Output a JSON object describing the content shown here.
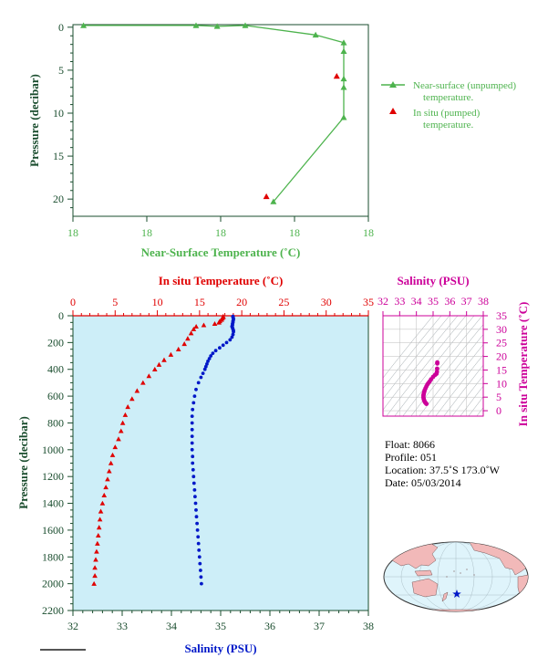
{
  "colors": {
    "near_surface": "#4db34d",
    "in_situ_temp": "#e00000",
    "salinity": "#0018c8",
    "ts_salinity": "#cc0099",
    "axis_dark": "#1a4d2e",
    "plot_bg": "#cdeef8",
    "land": "#f2b9b9",
    "ocean": "#dff4fb"
  },
  "chart_data": [
    {
      "id": "near_surface",
      "type": "line",
      "xlabel": "Near-Surface Temperature (˚C)",
      "ylabel": "Pressure (decibar)",
      "xtick_labels": [
        "18",
        "18",
        "18",
        "18",
        "18"
      ],
      "ylim": [
        0,
        22
      ],
      "yticks": [
        "0",
        "5",
        "10",
        "15",
        "20"
      ],
      "grid": false,
      "legend_position": "right",
      "series": [
        {
          "name": "Near-surface (unpumped) temperature.",
          "marker": "triangle-line",
          "x": [
            17.57,
            17.73,
            17.76,
            17.8,
            17.9,
            17.94,
            17.94,
            17.94,
            17.94,
            17.94,
            17.84
          ],
          "y": [
            -0.2,
            -0.2,
            -0.1,
            -0.2,
            0.9,
            1.8,
            2.8,
            6.0,
            7.0,
            10.5,
            20.3
          ]
        },
        {
          "name": "In situ (pumped) temperature.",
          "marker": "triangle",
          "x": [
            17.93,
            17.83
          ],
          "y": [
            5.7,
            19.7
          ]
        }
      ]
    },
    {
      "id": "main_profile",
      "type": "scatter",
      "top_xlabel": "In situ Temperature (˚C)",
      "bottom_xlabel": "Salinity (PSU)",
      "ylabel": "Pressure (decibar)",
      "top_xlim": [
        0,
        35
      ],
      "top_xticks": [
        0,
        5,
        10,
        15,
        20,
        25,
        30,
        35
      ],
      "bottom_xlim": [
        32,
        38
      ],
      "bottom_xticks": [
        32,
        33,
        34,
        35,
        36,
        37,
        38
      ],
      "ylim": [
        0,
        2200
      ],
      "yticks": [
        0,
        200,
        400,
        600,
        800,
        1000,
        1200,
        1400,
        1600,
        1800,
        2000,
        2200
      ],
      "grid": false,
      "series": [
        {
          "name": "In situ Temperature (˚C)",
          "axis": "top",
          "marker": "triangle",
          "points": [
            [
              17.8,
              5
            ],
            [
              17.8,
              10
            ],
            [
              17.7,
              20
            ],
            [
              17.6,
              30
            ],
            [
              17.4,
              40
            ],
            [
              17.3,
              50
            ],
            [
              16.8,
              60
            ],
            [
              15.5,
              70
            ],
            [
              14.6,
              80
            ],
            [
              14.3,
              100
            ],
            [
              14.0,
              130
            ],
            [
              13.6,
              170
            ],
            [
              13.2,
              210
            ],
            [
              12.5,
              250
            ],
            [
              11.6,
              290
            ],
            [
              10.8,
              330
            ],
            [
              10.2,
              365
            ],
            [
              9.7,
              400
            ],
            [
              9.0,
              450
            ],
            [
              8.3,
              500
            ],
            [
              7.6,
              560
            ],
            [
              7.0,
              620
            ],
            [
              6.5,
              680
            ],
            [
              6.2,
              740
            ],
            [
              5.9,
              800
            ],
            [
              5.7,
              860
            ],
            [
              5.4,
              920
            ],
            [
              5.0,
              980
            ],
            [
              4.7,
              1040
            ],
            [
              4.5,
              1100
            ],
            [
              4.3,
              1160
            ],
            [
              4.1,
              1220
            ],
            [
              3.9,
              1280
            ],
            [
              3.7,
              1340
            ],
            [
              3.5,
              1400
            ],
            [
              3.3,
              1460
            ],
            [
              3.2,
              1520
            ],
            [
              3.1,
              1580
            ],
            [
              3.0,
              1640
            ],
            [
              2.9,
              1700
            ],
            [
              2.8,
              1760
            ],
            [
              2.7,
              1820
            ],
            [
              2.6,
              1880
            ],
            [
              2.6,
              1940
            ],
            [
              2.5,
              2000
            ]
          ]
        },
        {
          "name": "Salinity (PSU)",
          "axis": "bottom",
          "marker": "dot",
          "points": [
            [
              35.25,
              5
            ],
            [
              35.25,
              10
            ],
            [
              35.26,
              20
            ],
            [
              35.26,
              30
            ],
            [
              35.25,
              40
            ],
            [
              35.25,
              50
            ],
            [
              35.24,
              60
            ],
            [
              35.24,
              70
            ],
            [
              35.23,
              80
            ],
            [
              35.24,
              90
            ],
            [
              35.25,
              100
            ],
            [
              35.26,
              110
            ],
            [
              35.26,
              120
            ],
            [
              35.25,
              140
            ],
            [
              35.23,
              160
            ],
            [
              35.19,
              180
            ],
            [
              35.12,
              200
            ],
            [
              35.05,
              220
            ],
            [
              34.98,
              240
            ],
            [
              34.9,
              260
            ],
            [
              34.84,
              280
            ],
            [
              34.8,
              300
            ],
            [
              34.77,
              320
            ],
            [
              34.74,
              340
            ],
            [
              34.72,
              360
            ],
            [
              34.7,
              380
            ],
            [
              34.68,
              400
            ],
            [
              34.64,
              430
            ],
            [
              34.6,
              460
            ],
            [
              34.55,
              500
            ],
            [
              34.5,
              550
            ],
            [
              34.47,
              600
            ],
            [
              34.45,
              650
            ],
            [
              34.43,
              700
            ],
            [
              34.42,
              750
            ],
            [
              34.42,
              800
            ],
            [
              34.42,
              850
            ],
            [
              34.42,
              900
            ],
            [
              34.42,
              950
            ],
            [
              34.42,
              1000
            ],
            [
              34.43,
              1050
            ],
            [
              34.43,
              1100
            ],
            [
              34.44,
              1150
            ],
            [
              34.45,
              1200
            ],
            [
              34.46,
              1250
            ],
            [
              34.47,
              1300
            ],
            [
              34.48,
              1350
            ],
            [
              34.49,
              1400
            ],
            [
              34.5,
              1450
            ],
            [
              34.51,
              1500
            ],
            [
              34.52,
              1550
            ],
            [
              34.53,
              1600
            ],
            [
              34.54,
              1650
            ],
            [
              34.55,
              1700
            ],
            [
              34.56,
              1750
            ],
            [
              34.57,
              1800
            ],
            [
              34.58,
              1850
            ],
            [
              34.59,
              1900
            ],
            [
              34.6,
              1950
            ],
            [
              34.61,
              2000
            ]
          ]
        }
      ]
    },
    {
      "id": "ts_diagram",
      "type": "scatter",
      "xlabel": "Salinity (PSU)",
      "ylabel": "In situ Temperature (˚C)",
      "xlim": [
        32,
        38
      ],
      "xticks": [
        32,
        33,
        34,
        35,
        36,
        37,
        38
      ],
      "ylim": [
        -2,
        35
      ],
      "yticks": [
        0,
        5,
        10,
        15,
        20,
        25,
        30,
        35
      ],
      "grid": true,
      "series": [
        {
          "name": "T-S",
          "marker": "dot",
          "points": [
            [
              35.25,
              17.8
            ],
            [
              35.25,
              17.4
            ],
            [
              35.24,
              15.5
            ],
            [
              35.23,
              14.3
            ],
            [
              35.2,
              13.6
            ],
            [
              35.12,
              13.2
            ],
            [
              35.0,
              12.5
            ],
            [
              34.88,
              11.6
            ],
            [
              34.8,
              10.8
            ],
            [
              34.72,
              10.2
            ],
            [
              34.66,
              9.7
            ],
            [
              34.6,
              9.0
            ],
            [
              34.55,
              8.3
            ],
            [
              34.5,
              7.6
            ],
            [
              34.47,
              7.0
            ],
            [
              34.45,
              6.5
            ],
            [
              34.43,
              6.0
            ],
            [
              34.42,
              5.6
            ],
            [
              34.42,
              5.0
            ],
            [
              34.43,
              4.5
            ],
            [
              34.45,
              4.1
            ],
            [
              34.47,
              3.7
            ],
            [
              34.5,
              3.3
            ],
            [
              34.53,
              3.0
            ],
            [
              34.56,
              2.8
            ],
            [
              34.6,
              2.5
            ]
          ]
        }
      ]
    }
  ],
  "info": {
    "float": "Float:  8066",
    "profile": "Profile:  051",
    "location": "Location:  37.5˚S  173.0˚W",
    "date": "Date:  05/03/2014"
  }
}
